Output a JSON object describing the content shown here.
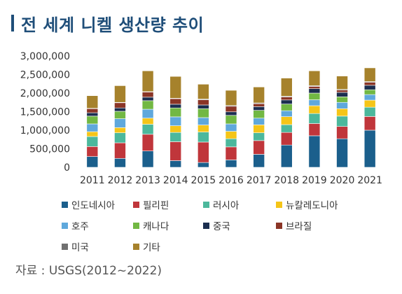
{
  "header": {
    "title": "전 세계 니켈 생산량 추이"
  },
  "source": "자료 : USGS(2012~2022)",
  "chart_data": {
    "type": "bar",
    "stacked": true,
    "title": "전 세계 니켈 생산량 추이",
    "categories": [
      "2011",
      "2012",
      "2013",
      "2014",
      "2015",
      "2016",
      "2017",
      "2018",
      "2019",
      "2020",
      "2021"
    ],
    "ylim": [
      0,
      3000000
    ],
    "yticks": [
      0,
      500000,
      1000000,
      1500000,
      2000000,
      2500000,
      3000000
    ],
    "ytick_labels": [
      "0",
      "500,000",
      "1,000,000",
      "1,500,000",
      "2,000,000",
      "2,500,000",
      "3,000,000"
    ],
    "grid": false,
    "legend_position": "bottom",
    "series": [
      {
        "name": "인도네시아",
        "color": "#1b5f8c",
        "values": [
          290000,
          240000,
          440000,
          180000,
          130000,
          200000,
          350000,
          600000,
          850000,
          770000,
          1000000
        ]
      },
      {
        "name": "필리핀",
        "color": "#c0363b",
        "values": [
          270000,
          420000,
          450000,
          510000,
          550000,
          350000,
          370000,
          340000,
          330000,
          330000,
          370000
        ]
      },
      {
        "name": "러시아",
        "color": "#4cb89c",
        "values": [
          270000,
          270000,
          270000,
          250000,
          270000,
          220000,
          210000,
          210000,
          270000,
          280000,
          250000
        ]
      },
      {
        "name": "뉴칼레도니아",
        "color": "#f5c518",
        "values": [
          130000,
          140000,
          165000,
          180000,
          190000,
          200000,
          215000,
          215000,
          210000,
          200000,
          190000
        ]
      },
      {
        "name": "호주",
        "color": "#5fa8dc",
        "values": [
          210000,
          240000,
          240000,
          240000,
          200000,
          200000,
          180000,
          160000,
          160000,
          170000,
          150000
        ]
      },
      {
        "name": "캐나다",
        "color": "#72b843",
        "values": [
          210000,
          200000,
          230000,
          240000,
          240000,
          230000,
          210000,
          180000,
          180000,
          150000,
          130000
        ]
      },
      {
        "name": "중국",
        "color": "#1b2e4f",
        "values": [
          90000,
          90000,
          95000,
          100000,
          100000,
          95000,
          100000,
          110000,
          120000,
          120000,
          120000
        ]
      },
      {
        "name": "브라질",
        "color": "#8b3526",
        "values": [
          110000,
          140000,
          140000,
          150000,
          140000,
          150000,
          80000,
          80000,
          60000,
          60000,
          80000
        ]
      },
      {
        "name": "미국",
        "color": "#707070",
        "values": [
          10000,
          10000,
          10000,
          10000,
          20000,
          20000,
          20000,
          20000,
          20000,
          20000,
          20000
        ]
      },
      {
        "name": "기타",
        "color": "#a6822c",
        "values": [
          340000,
          450000,
          560000,
          590000,
          400000,
          410000,
          430000,
          490000,
          400000,
          360000,
          370000
        ]
      }
    ]
  }
}
